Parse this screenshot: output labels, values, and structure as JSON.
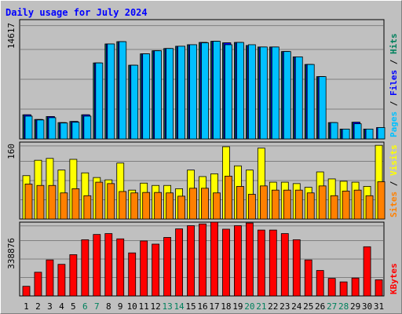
{
  "chart_data": {
    "type": "bar",
    "title": "Daily usage for July 2024",
    "categories": [
      "1",
      "2",
      "3",
      "4",
      "5",
      "6",
      "7",
      "8",
      "9",
      "10",
      "11",
      "12",
      "13",
      "14",
      "15",
      "16",
      "17",
      "18",
      "19",
      "20",
      "21",
      "22",
      "23",
      "24",
      "25",
      "26",
      "27",
      "28",
      "29",
      "30",
      "31"
    ],
    "weekend_days": [
      "6",
      "7",
      "13",
      "14",
      "20",
      "21",
      "27",
      "28"
    ],
    "colors": {
      "background": "#c0c0c0",
      "title": "#0000ff",
      "gridline": "#808080",
      "hits": "#00805c",
      "files": "#0000ff",
      "pages": "#00c0ff",
      "visits": "#ffff00",
      "sites": "#ff8000",
      "kbytes": "#ff0000",
      "weekday_label": "#000000",
      "weekend_label": "#00805c"
    },
    "panels": [
      {
        "id": "hits-files-pages",
        "axis_max_label": "14617",
        "ylim": [
          0,
          15700
        ],
        "label_parts": [
          {
            "text": "Pages",
            "color": "#00c0ff"
          },
          {
            "text": " / ",
            "color": "#000000"
          },
          {
            "text": "Files",
            "color": "#0000ff"
          },
          {
            "text": " / ",
            "color": "#000000"
          },
          {
            "text": "Hits",
            "color": "#00805c"
          }
        ],
        "series": [
          {
            "name": "Hits",
            "color": "#00805c",
            "values": [
              3180,
              2560,
              2950,
              2150,
              2300,
              3180,
              10000,
              12500,
              12800,
              9700,
              11200,
              11600,
              11900,
              12200,
              12400,
              12700,
              12850,
              12650,
              12700,
              12300,
              12100,
              12100,
              11500,
              10800,
              9800,
              8200,
              2150,
              1300,
              2200,
              1300,
              0
            ]
          },
          {
            "name": "Files",
            "color": "#0000ff",
            "values": [
              3180,
              2560,
              2950,
              2150,
              2300,
              3180,
              10000,
              12500,
              12800,
              9700,
              11200,
              11600,
              11900,
              12200,
              12400,
              12700,
              12850,
              12650,
              12700,
              12300,
              12100,
              12100,
              11500,
              10800,
              9800,
              8200,
              2150,
              1300,
              2200,
              1300,
              1500
            ]
          },
          {
            "name": "Pages",
            "color": "#00c0ff",
            "values": [
              3000,
              2500,
              2800,
              2100,
              2200,
              3000,
              10000,
              12500,
              12800,
              9700,
              11200,
              11600,
              11900,
              12200,
              12400,
              12650,
              12850,
              12400,
              12700,
              12400,
              12100,
              12100,
              11500,
              10800,
              9800,
              8200,
              2150,
              1300,
              2000,
              1300,
              1500
            ]
          }
        ]
      },
      {
        "id": "visits-sites",
        "axis_max_label": "160",
        "ylim": [
          0,
          165
        ],
        "label_parts": [
          {
            "text": "Sites",
            "color": "#ff8000"
          },
          {
            "text": " / ",
            "color": "#000000"
          },
          {
            "text": "Visits",
            "color": "#ffff00"
          }
        ],
        "series": [
          {
            "name": "Visits",
            "color": "#ffff00",
            "values": [
              93,
              126,
              130,
              105,
              128,
              99,
              89,
              84,
              120,
              62,
              77,
              72,
              72,
              65,
              105,
              91,
              97,
              155,
              114,
              105,
              152,
              79,
              79,
              76,
              68,
              101,
              86,
              81,
              79,
              70,
              158
            ]
          },
          {
            "name": "Sites",
            "color": "#ff8000",
            "values": [
              75,
              72,
              72,
              56,
              65,
              50,
              79,
              76,
              59,
              56,
              57,
              57,
              56,
              49,
              66,
              66,
              56,
              92,
              70,
              53,
              71,
              62,
              62,
              62,
              56,
              71,
              50,
              60,
              62,
              50,
              80
            ]
          }
        ]
      },
      {
        "id": "kbytes",
        "axis_max_label": "338876",
        "ylim": [
          0,
          420000
        ],
        "label_parts": [
          {
            "text": "KBytes",
            "color": "#ff0000"
          }
        ],
        "series": [
          {
            "name": "KBytes",
            "color": "#ff0000",
            "values": [
              55000,
              135000,
              205000,
              180000,
              235000,
              320000,
              350000,
              355000,
              325000,
              245000,
              313000,
              295000,
              333000,
              382000,
              400000,
              410000,
              420000,
              380000,
              400000,
              415000,
              375000,
              375000,
              355000,
              320000,
              205000,
              145000,
              100000,
              80000,
              102000,
              280000,
              92000
            ]
          }
        ]
      }
    ]
  }
}
